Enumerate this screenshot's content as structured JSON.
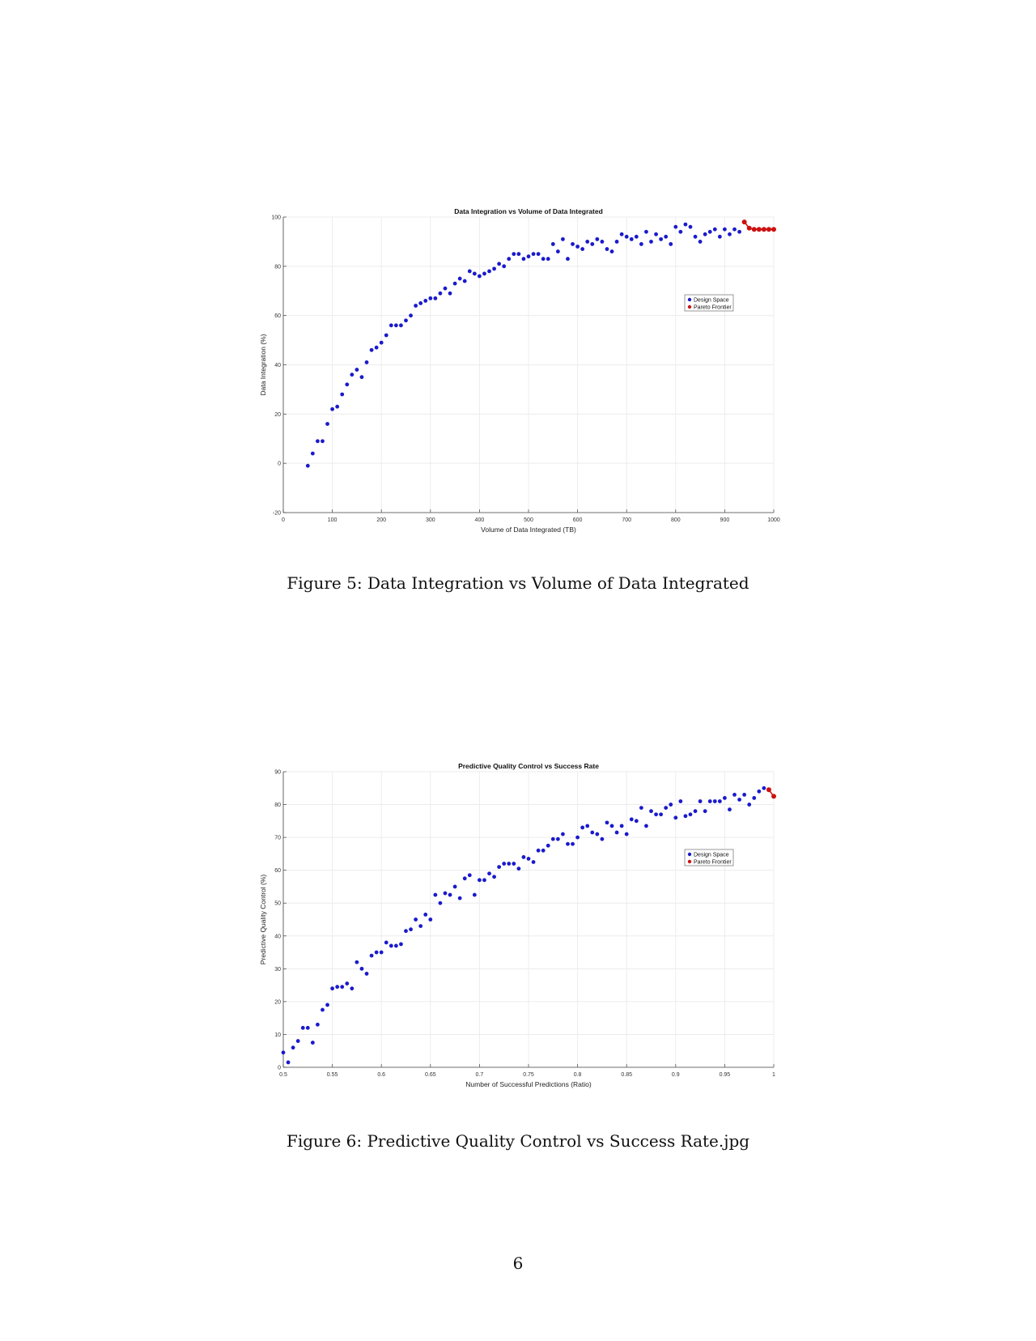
{
  "figures": [
    {
      "caption": "Figure 5: Data Integration vs Volume of Data Integrated",
      "chart_data": {
        "type": "scatter",
        "title": "Data Integration vs Volume of Data Integrated",
        "xlabel": "Volume of Data Integrated (TB)",
        "ylabel": "Data Integration (%)",
        "xlim": [
          0,
          1000
        ],
        "ylim": [
          -20,
          100
        ],
        "xticks": [
          0,
          100,
          200,
          300,
          400,
          500,
          600,
          700,
          800,
          900,
          1000
        ],
        "yticks": [
          -20,
          0,
          20,
          40,
          60,
          80,
          100
        ],
        "grid": true,
        "legend_position": "right",
        "series": [
          {
            "name": "Design Space",
            "color": "#1a1acc",
            "marker": "dot",
            "x": [
              50,
              60,
              70,
              80,
              90,
              100,
              110,
              120,
              130,
              140,
              150,
              160,
              170,
              180,
              190,
              200,
              210,
              220,
              230,
              240,
              250,
              260,
              270,
              280,
              290,
              300,
              310,
              320,
              330,
              340,
              350,
              360,
              370,
              380,
              390,
              400,
              410,
              420,
              430,
              440,
              450,
              460,
              470,
              480,
              490,
              500,
              510,
              520,
              530,
              540,
              550,
              560,
              570,
              580,
              590,
              600,
              610,
              620,
              630,
              640,
              650,
              660,
              670,
              680,
              690,
              700,
              710,
              720,
              730,
              740,
              750,
              760,
              770,
              780,
              790,
              800,
              810,
              820,
              830,
              840,
              850,
              860,
              870,
              880,
              890,
              900,
              910,
              920,
              930
            ],
            "y": [
              -1,
              4,
              9,
              9,
              16,
              22,
              23,
              28,
              32,
              36,
              38,
              35,
              41,
              46,
              47,
              49,
              52,
              56,
              56,
              56,
              58,
              60,
              64,
              65,
              66,
              67,
              67,
              69,
              71,
              69,
              73,
              75,
              74,
              78,
              77,
              76,
              77,
              78,
              79,
              81,
              80,
              83,
              85,
              85,
              83,
              84,
              85,
              85,
              83,
              83,
              89,
              86,
              91,
              83,
              89,
              88,
              87,
              90,
              89,
              91,
              90,
              87,
              86,
              90,
              93,
              92,
              91,
              92,
              89,
              94,
              90,
              93,
              91,
              92,
              89,
              96,
              94,
              97,
              96,
              92,
              90,
              93,
              94,
              95,
              92,
              95,
              93,
              95,
              94
            ]
          },
          {
            "name": "Pareto Frontier",
            "color": "#cc1111",
            "marker": "dot-line",
            "x": [
              940,
              950,
              960,
              970,
              980,
              990,
              1000
            ],
            "y": [
              98,
              95.5,
              95,
              95,
              95,
              95,
              95
            ]
          }
        ]
      }
    },
    {
      "caption": "Figure 6: Predictive Quality Control vs Success Rate.jpg",
      "chart_data": {
        "type": "scatter",
        "title": "Predictive Quality Control vs Success Rate",
        "xlabel": "Number of Successful Predictions (Ratio)",
        "ylabel": "Predictive Quality Control (%)",
        "xlim": [
          0.5,
          1
        ],
        "ylim": [
          0,
          90
        ],
        "xticks": [
          0.5,
          0.55,
          0.6,
          0.65,
          0.7,
          0.75,
          0.8,
          0.85,
          0.9,
          0.95,
          1
        ],
        "yticks": [
          0,
          10,
          20,
          30,
          40,
          50,
          60,
          70,
          80,
          90
        ],
        "grid": true,
        "legend_position": "right",
        "series": [
          {
            "name": "Design Space",
            "color": "#1a1acc",
            "marker": "dot",
            "x": [
              0.5,
              0.505,
              0.51,
              0.515,
              0.52,
              0.525,
              0.53,
              0.535,
              0.54,
              0.545,
              0.55,
              0.555,
              0.56,
              0.565,
              0.57,
              0.575,
              0.58,
              0.585,
              0.59,
              0.595,
              0.6,
              0.605,
              0.61,
              0.615,
              0.62,
              0.625,
              0.63,
              0.635,
              0.64,
              0.645,
              0.65,
              0.655,
              0.66,
              0.665,
              0.67,
              0.675,
              0.68,
              0.685,
              0.69,
              0.695,
              0.7,
              0.705,
              0.71,
              0.715,
              0.72,
              0.725,
              0.73,
              0.735,
              0.74,
              0.745,
              0.75,
              0.755,
              0.76,
              0.765,
              0.77,
              0.775,
              0.78,
              0.785,
              0.79,
              0.795,
              0.8,
              0.805,
              0.81,
              0.815,
              0.82,
              0.825,
              0.83,
              0.835,
              0.84,
              0.845,
              0.85,
              0.855,
              0.86,
              0.865,
              0.87,
              0.875,
              0.88,
              0.885,
              0.89,
              0.895,
              0.9,
              0.905,
              0.91,
              0.915,
              0.92,
              0.925,
              0.93,
              0.935,
              0.94,
              0.945,
              0.95,
              0.955,
              0.96,
              0.965,
              0.97,
              0.975,
              0.98,
              0.985,
              0.99
            ],
            "y": [
              4.5,
              1.5,
              6,
              8,
              12,
              12,
              7.5,
              13,
              17.5,
              19,
              24,
              24.5,
              24.5,
              25.5,
              24,
              32,
              30,
              28.5,
              34,
              35,
              35,
              38,
              37,
              37,
              37.5,
              41.5,
              42,
              45,
              43,
              46.5,
              45,
              52.5,
              50,
              53,
              52.5,
              55,
              51.5,
              57.5,
              58.5,
              52.5,
              57,
              57,
              59,
              58,
              61,
              62,
              62,
              62,
              60.5,
              64,
              63.5,
              62.5,
              66,
              66,
              67.5,
              69.5,
              69.5,
              71,
              68,
              68,
              70,
              73,
              73.5,
              71.5,
              71,
              69.5,
              74.5,
              73.5,
              71.5,
              73.5,
              71,
              75.5,
              75,
              79,
              73.5,
              78,
              77,
              77,
              79,
              80,
              76,
              81,
              76.5,
              77,
              78,
              81,
              78,
              81,
              81,
              81,
              82,
              78.5,
              83,
              81.5,
              83,
              80,
              82,
              84,
              85
            ]
          },
          {
            "name": "Pareto Frontier",
            "color": "#cc1111",
            "marker": "dot-line",
            "x": [
              0.995,
              1.0
            ],
            "y": [
              84.5,
              82.5
            ]
          }
        ]
      }
    }
  ],
  "page_number": "6"
}
